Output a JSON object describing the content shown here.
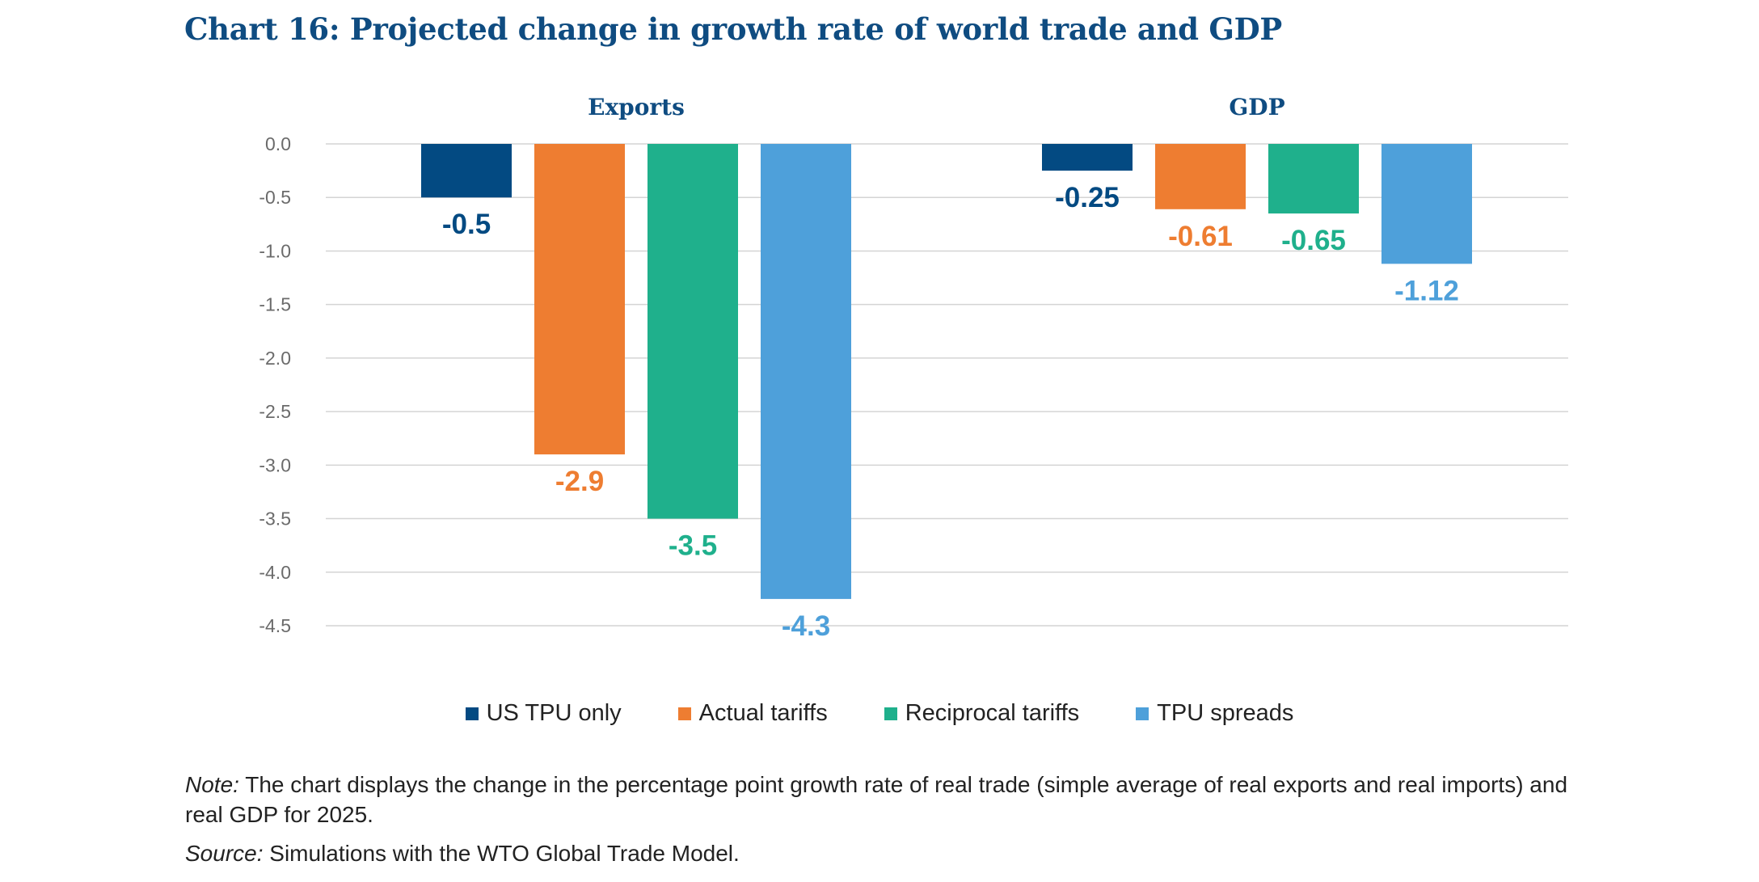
{
  "title": "Chart 16: Projected change in growth rate of world trade and GDP",
  "chart_data": {
    "type": "bar",
    "ylim": [
      -4.5,
      0.0
    ],
    "yticks": [
      0.0,
      -0.5,
      -1.0,
      -1.5,
      -2.0,
      -2.5,
      -3.0,
      -3.5,
      -4.0,
      -4.5
    ],
    "grid": true,
    "legend_position": "bottom",
    "series": [
      {
        "name": "US TPU only",
        "color": "#034a82",
        "values": [
          -0.5,
          -0.25
        ],
        "labels": [
          "-0.5",
          "-0.25"
        ]
      },
      {
        "name": "Actual tariffs",
        "color": "#ee7d31",
        "values": [
          -2.9,
          -0.61
        ],
        "labels": [
          "-2.9",
          "-0.61"
        ]
      },
      {
        "name": "Reciprocal tariffs",
        "color": "#1fb08c",
        "values": [
          -3.5,
          -0.65
        ],
        "labels": [
          "-3.5",
          "-0.65"
        ]
      },
      {
        "name": "TPU spreads",
        "color": "#4ea0da",
        "values": [
          -4.25,
          -1.12
        ],
        "labels": [
          "-4.3",
          "-1.12"
        ]
      }
    ],
    "panels": [
      "Exports",
      "GDP"
    ]
  },
  "note": {
    "label": "Note:",
    "text": " The chart displays the change in the percentage point growth rate of real trade (simple average of real exports and real imports) and real GDP for 2025."
  },
  "source": {
    "label": "Source:",
    "text": " Simulations with the WTO Global Trade Model."
  }
}
